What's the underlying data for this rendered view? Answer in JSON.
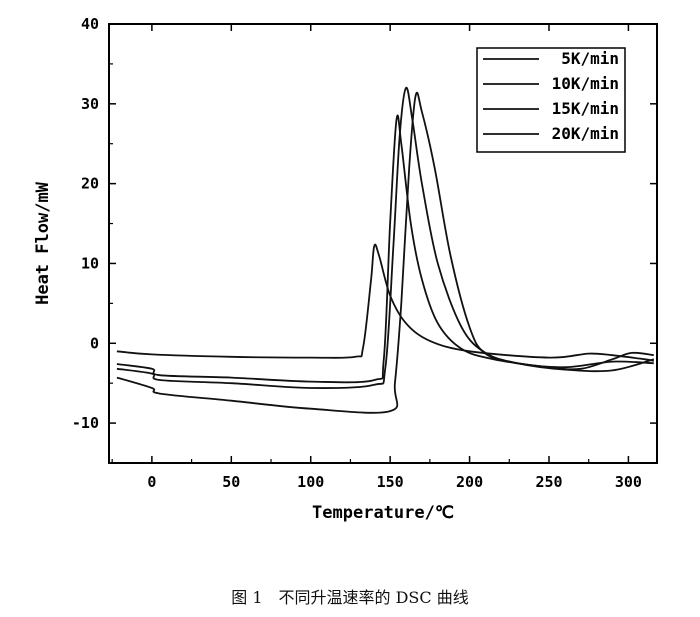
{
  "chart_data": {
    "type": "line",
    "xlabel": "Temperature/℃",
    "ylabel": "Heat Flow/mW",
    "xlim": [
      -27,
      318
    ],
    "ylim": [
      -15,
      40
    ],
    "xticks": [
      0,
      50,
      100,
      150,
      200,
      250,
      300
    ],
    "yticks": [
      -10,
      0,
      10,
      20,
      30,
      40
    ],
    "legend_position": "top-right",
    "series": [
      {
        "name": "5K/min",
        "points": [
          [
            -22,
            -1.0
          ],
          [
            0,
            -1.4
          ],
          [
            50,
            -1.7
          ],
          [
            100,
            -1.8
          ],
          [
            128,
            -1.7
          ],
          [
            133,
            -0.5
          ],
          [
            138,
            8.0
          ],
          [
            140,
            12.2
          ],
          [
            143,
            11.0
          ],
          [
            150,
            6.0
          ],
          [
            160,
            2.5
          ],
          [
            175,
            0.3
          ],
          [
            200,
            -1.0
          ],
          [
            250,
            -1.8
          ],
          [
            275,
            -1.3
          ],
          [
            290,
            -1.5
          ],
          [
            310,
            -2.0
          ],
          [
            316,
            -2.2
          ]
        ]
      },
      {
        "name": "10K/min",
        "points": [
          [
            -22,
            -2.6
          ],
          [
            0,
            -3.2
          ],
          [
            5,
            -4.0
          ],
          [
            50,
            -4.3
          ],
          [
            100,
            -4.8
          ],
          [
            140,
            -4.6
          ],
          [
            146,
            -2.0
          ],
          [
            150,
            15.0
          ],
          [
            154,
            28.0
          ],
          [
            157,
            25.0
          ],
          [
            163,
            15.0
          ],
          [
            170,
            8.0
          ],
          [
            180,
            2.5
          ],
          [
            195,
            -0.7
          ],
          [
            215,
            -2.0
          ],
          [
            250,
            -3.0
          ],
          [
            270,
            -3.2
          ],
          [
            290,
            -2.0
          ],
          [
            302,
            -1.2
          ],
          [
            316,
            -1.5
          ]
        ]
      },
      {
        "name": "15K/min",
        "points": [
          [
            -22,
            -3.2
          ],
          [
            0,
            -3.8
          ],
          [
            5,
            -4.6
          ],
          [
            50,
            -5.0
          ],
          [
            100,
            -5.6
          ],
          [
            140,
            -5.2
          ],
          [
            147,
            -3.0
          ],
          [
            152,
            12.0
          ],
          [
            156,
            26.0
          ],
          [
            160,
            32.0
          ],
          [
            164,
            28.0
          ],
          [
            170,
            20.0
          ],
          [
            180,
            10.0
          ],
          [
            195,
            2.0
          ],
          [
            210,
            -1.2
          ],
          [
            230,
            -2.5
          ],
          [
            260,
            -3.3
          ],
          [
            290,
            -3.4
          ],
          [
            316,
            -2.0
          ]
        ]
      },
      {
        "name": "20K/min",
        "points": [
          [
            -22,
            -4.3
          ],
          [
            0,
            -5.6
          ],
          [
            5,
            -6.3
          ],
          [
            50,
            -7.2
          ],
          [
            100,
            -8.2
          ],
          [
            150,
            -8.5
          ],
          [
            153,
            -5.0
          ],
          [
            157,
            5.0
          ],
          [
            162,
            22.0
          ],
          [
            166,
            31.0
          ],
          [
            170,
            29.0
          ],
          [
            178,
            22.0
          ],
          [
            188,
            11.0
          ],
          [
            200,
            2.0
          ],
          [
            210,
            -1.3
          ],
          [
            230,
            -2.5
          ],
          [
            260,
            -3.0
          ],
          [
            290,
            -2.3
          ],
          [
            316,
            -2.5
          ]
        ]
      }
    ]
  },
  "caption": "图 1　不同升温速率的 DSC 曲线"
}
